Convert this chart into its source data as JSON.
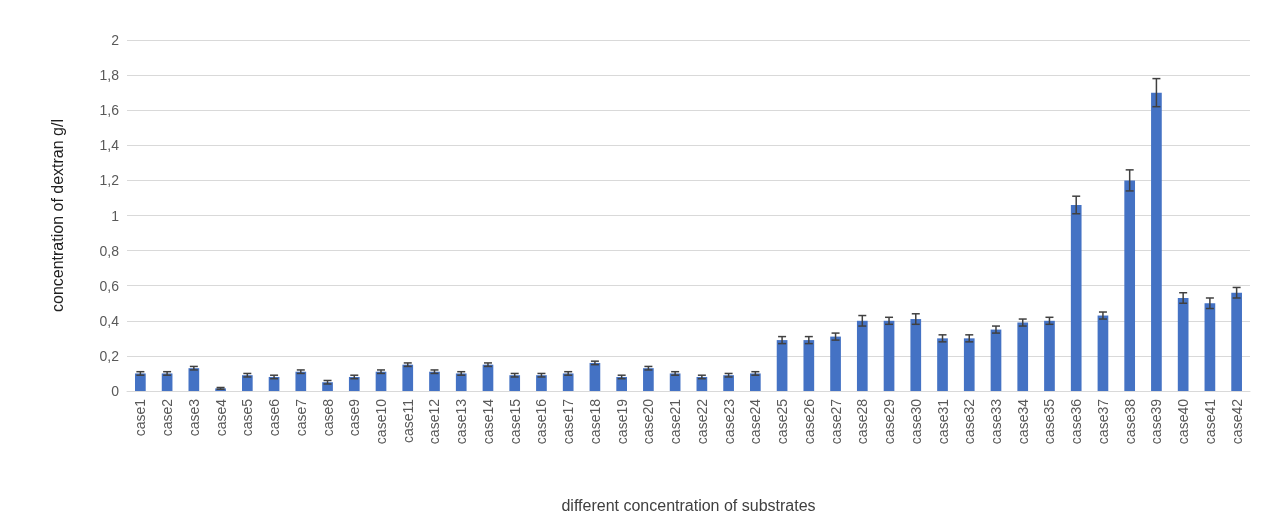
{
  "chart_data": {
    "type": "bar",
    "xlabel": "different concentration of substrates",
    "ylabel": "concentration of dextran g/l",
    "categories": [
      "case1",
      "case2",
      "case3",
      "case4",
      "case5",
      "case6",
      "case7",
      "case8",
      "case9",
      "case10",
      "case11",
      "case12",
      "case13",
      "case14",
      "case15",
      "case16",
      "case17",
      "case18",
      "case19",
      "case20",
      "case21",
      "case22",
      "case23",
      "case24",
      "case25",
      "case26",
      "case27",
      "case28",
      "case29",
      "case30",
      "case31",
      "case32",
      "case33",
      "case34",
      "case35",
      "case36",
      "case37",
      "case38",
      "case39",
      "case40",
      "case41",
      "case42"
    ],
    "values": [
      0.1,
      0.1,
      0.13,
      0.015,
      0.09,
      0.08,
      0.11,
      0.05,
      0.08,
      0.11,
      0.15,
      0.11,
      0.1,
      0.15,
      0.09,
      0.09,
      0.1,
      0.16,
      0.08,
      0.13,
      0.1,
      0.08,
      0.09,
      0.1,
      0.29,
      0.29,
      0.31,
      0.4,
      0.4,
      0.41,
      0.3,
      0.3,
      0.35,
      0.39,
      0.4,
      1.06,
      0.43,
      1.2,
      1.7,
      0.53,
      0.5,
      0.56
    ],
    "errors": [
      0.01,
      0.01,
      0.01,
      0.005,
      0.01,
      0.01,
      0.01,
      0.01,
      0.01,
      0.01,
      0.01,
      0.01,
      0.01,
      0.01,
      0.01,
      0.01,
      0.01,
      0.01,
      0.01,
      0.01,
      0.01,
      0.01,
      0.01,
      0.01,
      0.02,
      0.02,
      0.02,
      0.03,
      0.02,
      0.03,
      0.02,
      0.02,
      0.02,
      0.02,
      0.02,
      0.05,
      0.02,
      0.06,
      0.08,
      0.03,
      0.03,
      0.03
    ],
    "color": "#4472c4",
    "ylim": [
      0,
      2
    ],
    "yticks": [
      0,
      {
        "value": 0.2,
        "label": "0,2"
      },
      {
        "value": 0.4,
        "label": "0,4"
      },
      {
        "value": 0.6,
        "label": "0,6"
      },
      {
        "value": 0.8,
        "label": "0,8"
      },
      1,
      {
        "value": 1.2,
        "label": "1,2"
      },
      {
        "value": 1.4,
        "label": "1,4"
      },
      {
        "value": 1.6,
        "label": "1,6"
      },
      {
        "value": 1.8,
        "label": "1,8"
      },
      2
    ],
    "grid": "y"
  }
}
